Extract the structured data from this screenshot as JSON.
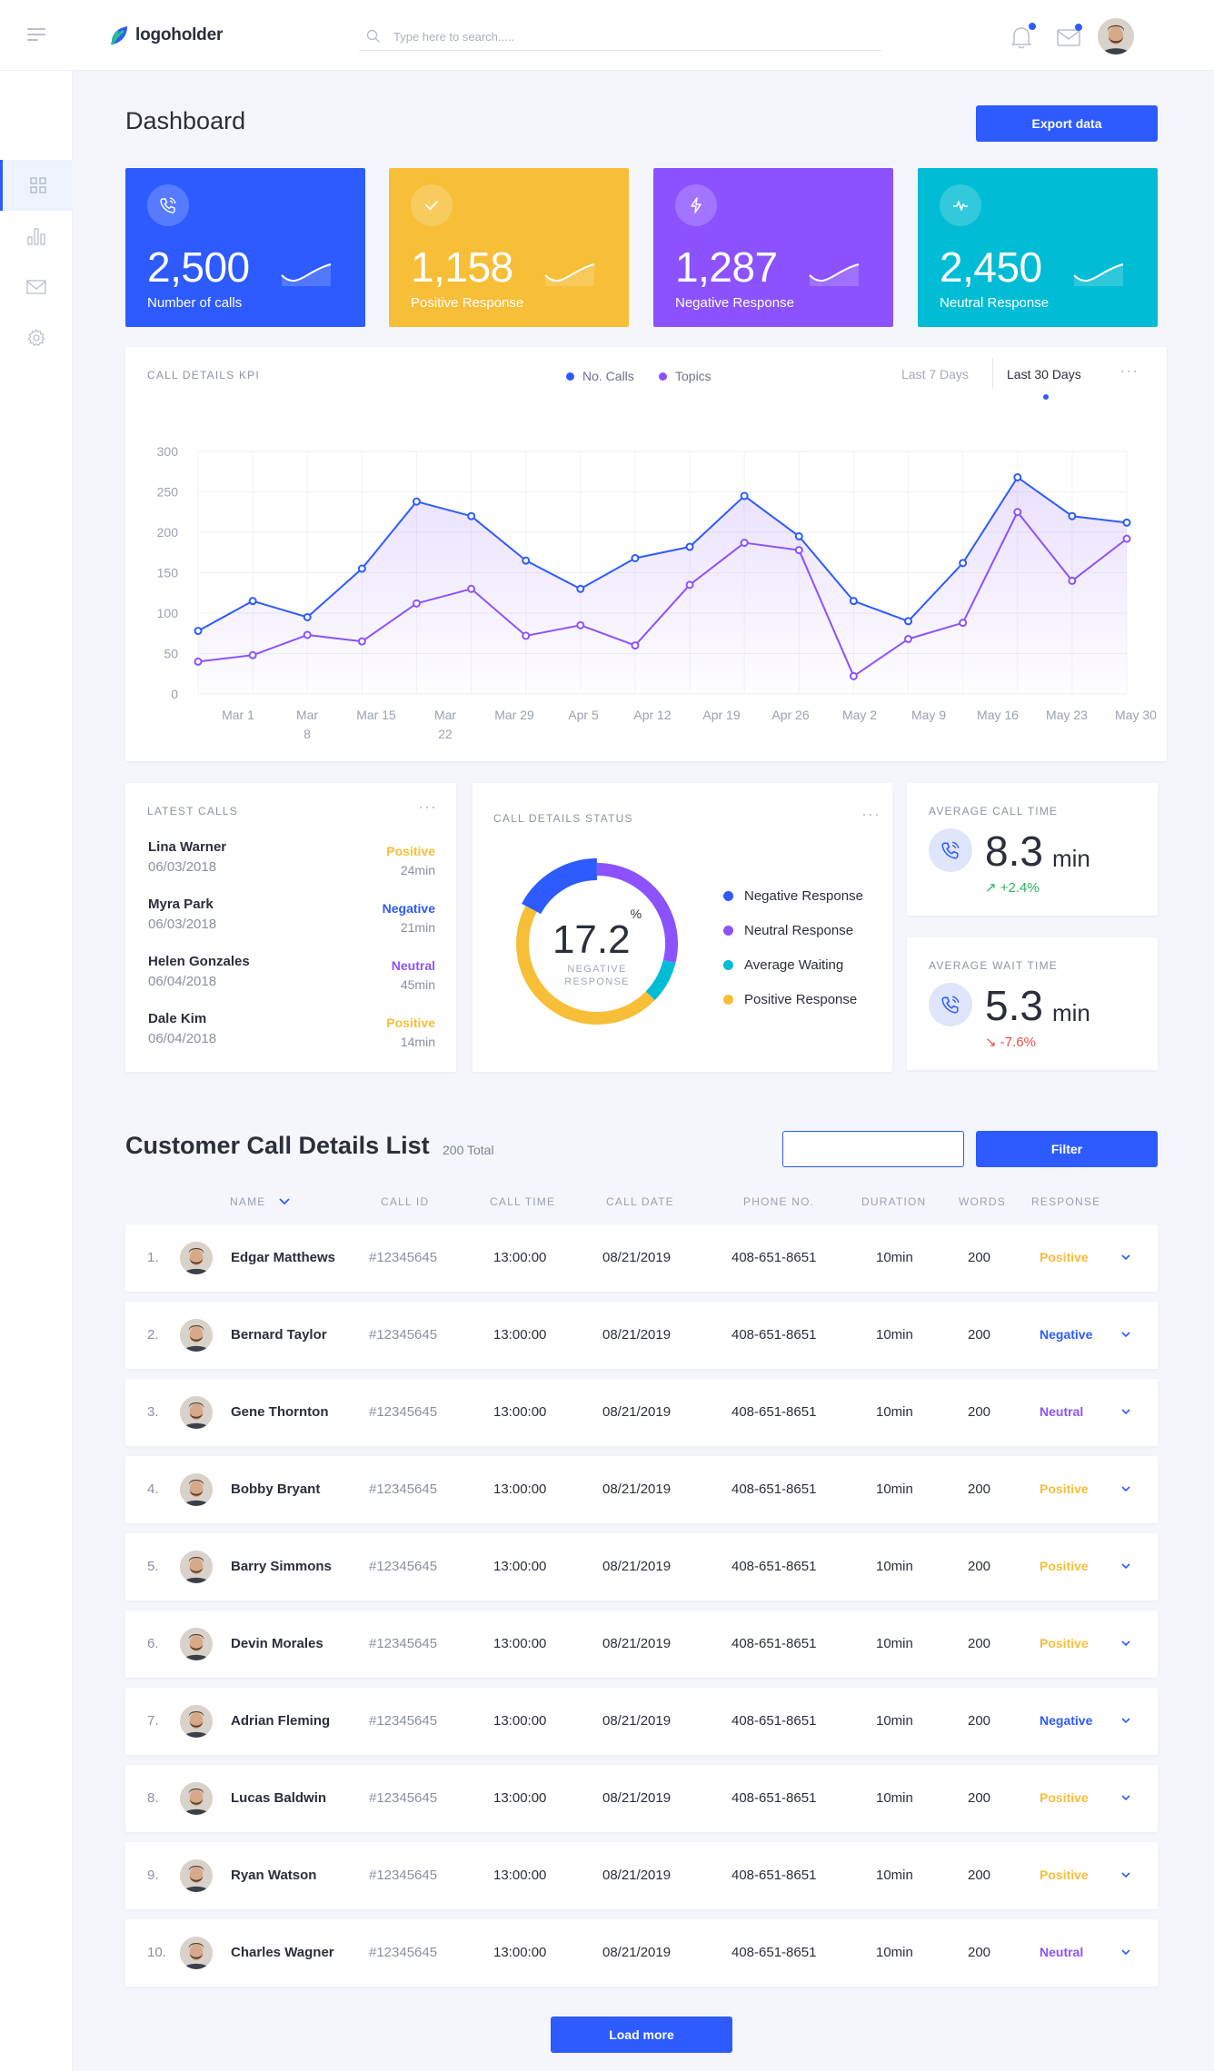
{
  "app": {
    "logo_text": "logoholder",
    "search_placeholder": "Type here to search....."
  },
  "header": {
    "title": "Dashboard",
    "export_label": "Export data"
  },
  "stats": [
    {
      "value": "2,500",
      "label": "Number of calls",
      "color": "#2d5bff",
      "icon": "phone-icon"
    },
    {
      "value": "1,158",
      "label": "Positive Response",
      "color": "#f7be38",
      "icon": "check-icon"
    },
    {
      "value": "1,287",
      "label": "Negative Response",
      "color": "#8c52ff",
      "icon": "bolt-icon"
    },
    {
      "value": "2,450",
      "label": "Neutral Response",
      "color": "#00bcd4",
      "icon": "pulse-icon"
    }
  ],
  "kpi": {
    "title": "CALL DETAILS KPI",
    "range_options": [
      "Last 7 Days",
      "Last 30 Days"
    ],
    "selected_range": "Last 30 Days"
  },
  "chart_data": {
    "type": "line",
    "title": "CALL DETAILS KPI",
    "xlabel": "",
    "ylabel": "",
    "ylim": [
      0,
      300
    ],
    "yticks": [
      0,
      50,
      100,
      150,
      200,
      250,
      300
    ],
    "x_tick_labels": [
      "Mar 1",
      "Mar 8",
      "Mar 15",
      "Mar 22",
      "Mar 29",
      "Apr 5",
      "Apr 12",
      "Apr 19",
      "Apr 26",
      "May 2",
      "May 9",
      "May 16",
      "May 23",
      "May 30"
    ],
    "grid": true,
    "legend_position": "top",
    "series": [
      {
        "name": "No. Calls",
        "color": "#2d5bff",
        "values": [
          78,
          115,
          95,
          155,
          238,
          220,
          165,
          130,
          168,
          182,
          245,
          195,
          115,
          90,
          162,
          268,
          220,
          212
        ]
      },
      {
        "name": "Topics",
        "color": "#8c52ff",
        "values": [
          40,
          48,
          73,
          65,
          112,
          130,
          72,
          85,
          60,
          135,
          187,
          178,
          22,
          68,
          88,
          225,
          140,
          192
        ]
      }
    ]
  },
  "latest_calls": {
    "title": "LATEST CALLS",
    "items": [
      {
        "name": "Lina Warner",
        "date": "06/03/2018",
        "status": "Positive",
        "duration": "24min"
      },
      {
        "name": "Myra Park",
        "date": "06/03/2018",
        "status": "Negative",
        "duration": "21min"
      },
      {
        "name": "Helen Gonzales",
        "date": "06/04/2018",
        "status": "Neutral",
        "duration": "45min"
      },
      {
        "name": "Dale Kim",
        "date": "06/04/2018",
        "status": "Positive",
        "duration": "14min"
      }
    ]
  },
  "call_status": {
    "title": "CALL DETAILS STATUS",
    "center_value": "17.2",
    "center_unit": "%",
    "center_label": "NEGATIVE RESPONSE",
    "legend": [
      {
        "label": "Negative Response",
        "color": "#2d5bff"
      },
      {
        "label": "Neutral Response",
        "color": "#8c52ff"
      },
      {
        "label": "Average Waiting",
        "color": "#00bcd4"
      },
      {
        "label": "Positive Response",
        "color": "#f7be38"
      }
    ],
    "segments": [
      {
        "label": "Negative Response",
        "percent": 17.2,
        "color": "#2d5bff"
      },
      {
        "label": "Neutral Response",
        "percent": 28.8,
        "color": "#8c52ff"
      },
      {
        "label": "Average Waiting",
        "percent": 8.5,
        "color": "#00bcd4"
      },
      {
        "label": "Positive Response",
        "percent": 45.5,
        "color": "#f7be38"
      }
    ]
  },
  "avg_call": {
    "title": "AVERAGE CALL TIME",
    "value": "8.3",
    "unit": "min",
    "change": "+2.4%",
    "change_color": "#2bb35e"
  },
  "avg_wait": {
    "title": "AVERAGE WAIT TIME",
    "value": "5.3",
    "unit": "min",
    "change": "-7.6%",
    "change_color": "#e84b4b"
  },
  "list": {
    "title": "Customer Call Details List",
    "total": "200 Total",
    "filter_value": "",
    "filter_label": "Filter",
    "load_more": "Load more",
    "columns": [
      "NAME",
      "CALL ID",
      "CALL TIME",
      "CALL DATE",
      "PHONE NO.",
      "DURATION",
      "WORDS",
      "RESPONSE"
    ],
    "rows": [
      {
        "num": "1.",
        "name": "Edgar Matthews",
        "id": "#12345645",
        "time": "13:00:00",
        "date": "08/21/2019",
        "phone": "408-651-8651",
        "duration": "10min",
        "words": "200",
        "response": "Positive"
      },
      {
        "num": "2.",
        "name": "Bernard Taylor",
        "id": "#12345645",
        "time": "13:00:00",
        "date": "08/21/2019",
        "phone": "408-651-8651",
        "duration": "10min",
        "words": "200",
        "response": "Negative"
      },
      {
        "num": "3.",
        "name": "Gene Thornton",
        "id": "#12345645",
        "time": "13:00:00",
        "date": "08/21/2019",
        "phone": "408-651-8651",
        "duration": "10min",
        "words": "200",
        "response": "Neutral"
      },
      {
        "num": "4.",
        "name": "Bobby Bryant",
        "id": "#12345645",
        "time": "13:00:00",
        "date": "08/21/2019",
        "phone": "408-651-8651",
        "duration": "10min",
        "words": "200",
        "response": "Positive"
      },
      {
        "num": "5.",
        "name": "Barry Simmons",
        "id": "#12345645",
        "time": "13:00:00",
        "date": "08/21/2019",
        "phone": "408-651-8651",
        "duration": "10min",
        "words": "200",
        "response": "Positive"
      },
      {
        "num": "6.",
        "name": "Devin Morales",
        "id": "#12345645",
        "time": "13:00:00",
        "date": "08/21/2019",
        "phone": "408-651-8651",
        "duration": "10min",
        "words": "200",
        "response": "Positive"
      },
      {
        "num": "7.",
        "name": "Adrian Fleming",
        "id": "#12345645",
        "time": "13:00:00",
        "date": "08/21/2019",
        "phone": "408-651-8651",
        "duration": "10min",
        "words": "200",
        "response": "Negative"
      },
      {
        "num": "8.",
        "name": "Lucas Baldwin",
        "id": "#12345645",
        "time": "13:00:00",
        "date": "08/21/2019",
        "phone": "408-651-8651",
        "duration": "10min",
        "words": "200",
        "response": "Positive"
      },
      {
        "num": "9.",
        "name": "Ryan Watson",
        "id": "#12345645",
        "time": "13:00:00",
        "date": "08/21/2019",
        "phone": "408-651-8651",
        "duration": "10min",
        "words": "200",
        "response": "Positive"
      },
      {
        "num": "10.",
        "name": "Charles Wagner",
        "id": "#12345645",
        "time": "13:00:00",
        "date": "08/21/2019",
        "phone": "408-651-8651",
        "duration": "10min",
        "words": "200",
        "response": "Neutral"
      }
    ]
  },
  "response_colors": {
    "Positive": "#f7be38",
    "Negative": "#2d5bff",
    "Neutral": "#8c52ff"
  },
  "sidebar": {
    "items": [
      {
        "icon": "grid-icon"
      },
      {
        "icon": "bar-chart-icon"
      },
      {
        "icon": "mail-icon"
      },
      {
        "icon": "gear-icon"
      }
    ]
  }
}
